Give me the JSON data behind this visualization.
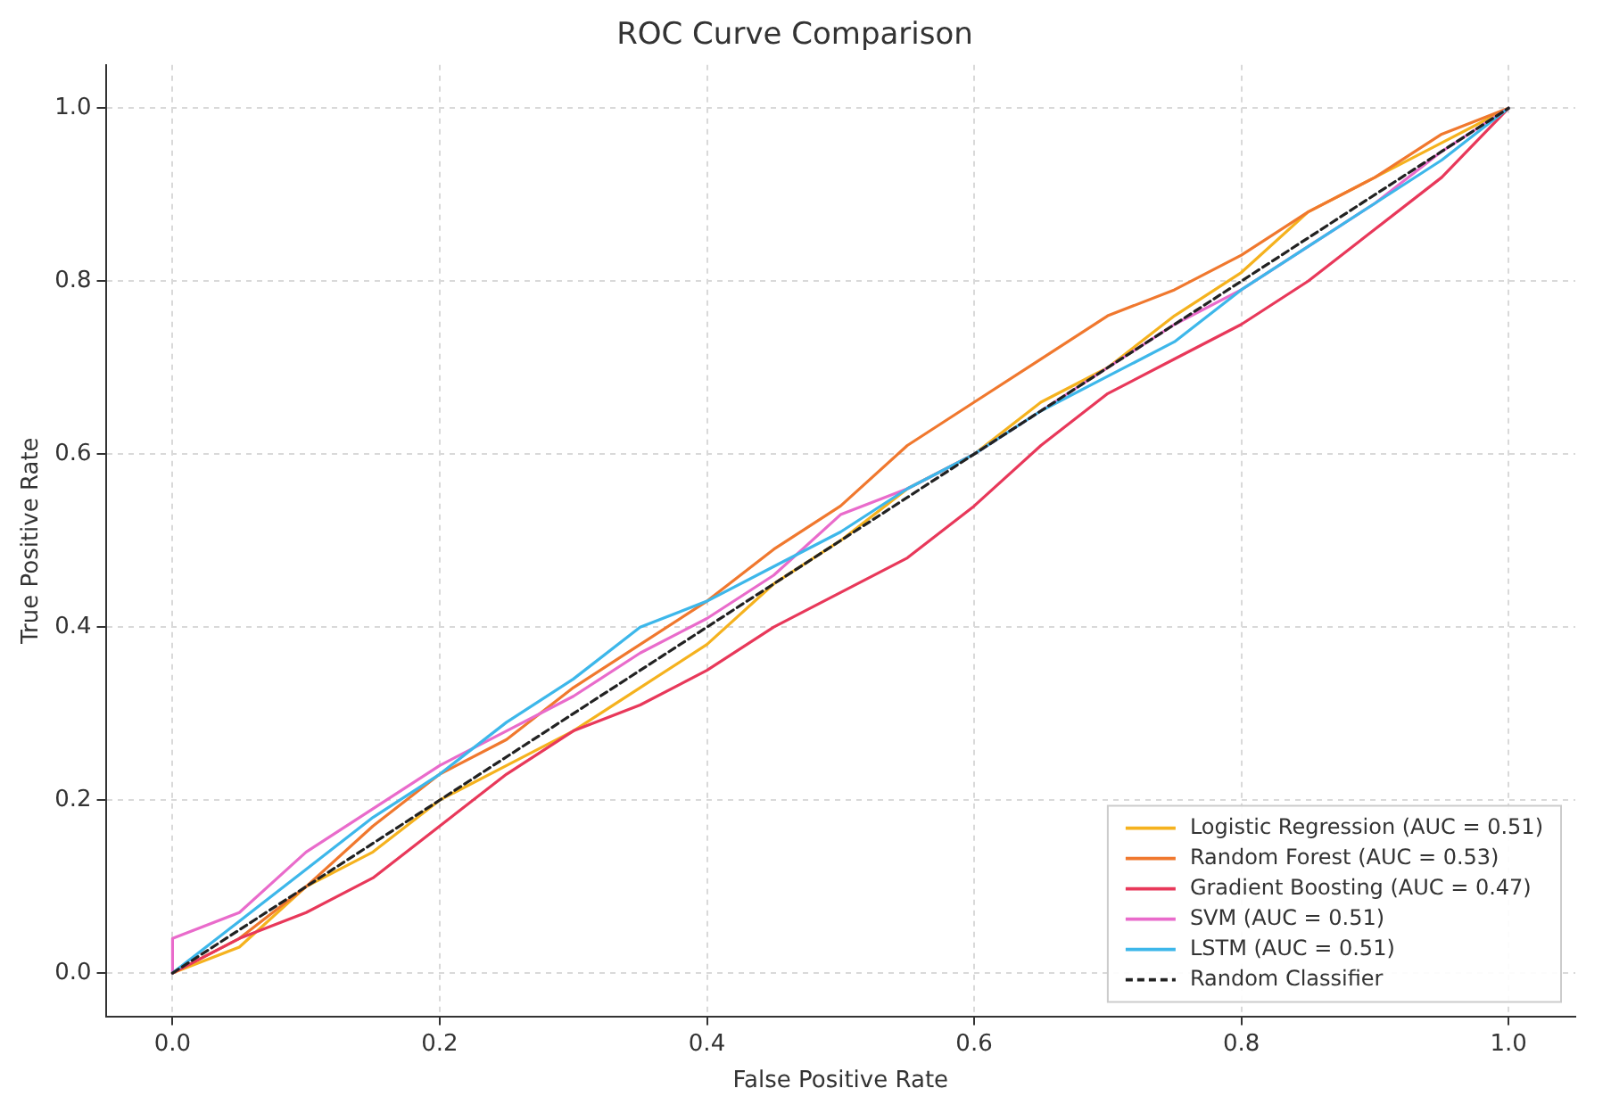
{
  "chart_data": {
    "type": "line",
    "title": "ROC Curve Comparison",
    "xlabel": "False Positive Rate",
    "ylabel": "True Positive Rate",
    "xlim": [
      -0.05,
      1.05
    ],
    "ylim": [
      -0.05,
      1.05
    ],
    "xticks": [
      {
        "value": 0,
        "label": "0.0"
      },
      0.2,
      0.4,
      0.6,
      0.8,
      {
        "value": 1,
        "label": "1.0"
      }
    ],
    "yticks": [
      {
        "value": 0,
        "label": "0.0"
      },
      0.2,
      0.4,
      0.6,
      0.8,
      {
        "value": 1,
        "label": "1.0"
      }
    ],
    "grid": true,
    "legend": "bottom right",
    "marker": "none",
    "series": [
      {
        "name": "Logistic Regression (AUC = 0.51)",
        "color": "#f5b21e",
        "x": [
          0,
          0.05,
          0.1,
          0.15,
          0.2,
          0.25,
          0.3,
          0.35,
          0.4,
          0.45,
          0.5,
          0.55,
          0.6,
          0.65,
          0.7,
          0.75,
          0.8,
          0.85,
          0.9,
          0.95,
          1
        ],
        "values": [
          0,
          0.03,
          0.1,
          0.14,
          0.2,
          0.24,
          0.28,
          0.33,
          0.38,
          0.45,
          0.5,
          0.56,
          0.6,
          0.66,
          0.7,
          0.76,
          0.81,
          0.88,
          0.92,
          0.96,
          1
        ]
      },
      {
        "name": "Random Forest (AUC = 0.53)",
        "color": "#f0782e",
        "x": [
          0,
          0.05,
          0.1,
          0.15,
          0.2,
          0.25,
          0.3,
          0.35,
          0.4,
          0.45,
          0.5,
          0.55,
          0.6,
          0.65,
          0.7,
          0.75,
          0.8,
          0.85,
          0.9,
          0.95,
          1
        ],
        "values": [
          0,
          0.04,
          0.1,
          0.17,
          0.23,
          0.27,
          0.33,
          0.38,
          0.43,
          0.49,
          0.54,
          0.61,
          0.66,
          0.71,
          0.76,
          0.79,
          0.83,
          0.88,
          0.92,
          0.97,
          1
        ]
      },
      {
        "name": "Gradient Boosting (AUC = 0.47)",
        "color": "#e8385a",
        "x": [
          0,
          0.05,
          0.1,
          0.15,
          0.2,
          0.25,
          0.3,
          0.35,
          0.4,
          0.45,
          0.5,
          0.55,
          0.6,
          0.65,
          0.7,
          0.75,
          0.8,
          0.85,
          0.9,
          0.95,
          1
        ],
        "values": [
          0,
          0.04,
          0.07,
          0.11,
          0.17,
          0.23,
          0.28,
          0.31,
          0.35,
          0.4,
          0.44,
          0.48,
          0.54,
          0.61,
          0.67,
          0.71,
          0.75,
          0.8,
          0.86,
          0.92,
          1
        ]
      },
      {
        "name": "SVM (AUC = 0.51)",
        "color": "#e96bcb",
        "x": [
          0,
          0,
          0.05,
          0.1,
          0.15,
          0.2,
          0.25,
          0.3,
          0.35,
          0.4,
          0.45,
          0.5,
          0.55,
          0.6,
          0.65,
          0.7,
          0.75,
          0.8,
          0.85,
          0.9,
          0.95,
          1
        ],
        "values": [
          0,
          0.04,
          0.07,
          0.14,
          0.19,
          0.24,
          0.28,
          0.32,
          0.37,
          0.41,
          0.46,
          0.53,
          0.56,
          0.6,
          0.65,
          0.7,
          0.75,
          0.79,
          0.84,
          0.89,
          0.95,
          1
        ]
      },
      {
        "name": "LSTM (AUC = 0.51)",
        "color": "#3db7ea",
        "x": [
          0,
          0.05,
          0.1,
          0.15,
          0.2,
          0.25,
          0.3,
          0.35,
          0.4,
          0.45,
          0.5,
          0.55,
          0.6,
          0.65,
          0.7,
          0.75,
          0.8,
          0.85,
          0.9,
          0.95,
          1
        ],
        "values": [
          0,
          0.06,
          0.12,
          0.18,
          0.23,
          0.29,
          0.34,
          0.4,
          0.43,
          0.47,
          0.51,
          0.56,
          0.6,
          0.65,
          0.69,
          0.73,
          0.79,
          0.84,
          0.89,
          0.94,
          1
        ]
      },
      {
        "name": "Random Classifier",
        "color": "#222222",
        "line_style": "dashed",
        "x": [
          0,
          1
        ],
        "values": [
          0,
          1
        ]
      }
    ]
  }
}
